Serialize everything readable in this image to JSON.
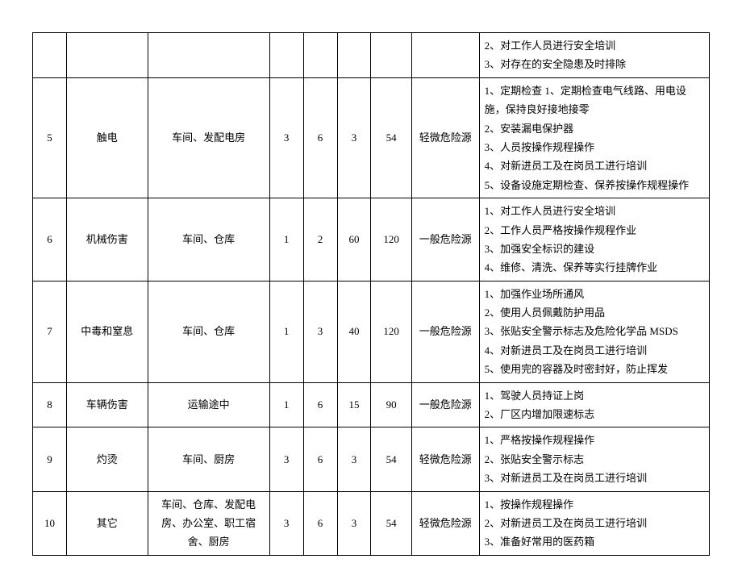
{
  "table": {
    "columns": [
      "idx",
      "name",
      "location",
      "c1",
      "c2",
      "c3",
      "c4",
      "level",
      "measures"
    ],
    "column_widths_pct": [
      5,
      12,
      18,
      5,
      5,
      5,
      6,
      10,
      34
    ],
    "font_family": "SimSun",
    "font_size_pt": 10,
    "border_color": "#000000",
    "background_color": "#ffffff",
    "text_color": "#000000",
    "rows": [
      {
        "idx": "",
        "name": "",
        "location": "",
        "c1": "",
        "c2": "",
        "c3": "",
        "c4": "",
        "level": "",
        "measures": [
          "2、对工作人员进行安全培训",
          "3、对存在的安全隐患及时排除"
        ]
      },
      {
        "idx": "5",
        "name": "触电",
        "location": "车间、发配电房",
        "c1": "3",
        "c2": "6",
        "c3": "3",
        "c4": "54",
        "level": "轻微危险源",
        "measures": [
          "1、定期检查 1、定期检查电气线路、用电设施，保持良好接地接零",
          "2、安装漏电保护器",
          "3、人员按操作规程操作",
          "4、对新进员工及在岗员工进行培训",
          "5、设备设施定期检查、保养按操作规程操作"
        ]
      },
      {
        "idx": "6",
        "name": "机械伤害",
        "location": "车间、仓库",
        "c1": "1",
        "c2": "2",
        "c3": "60",
        "c4": "120",
        "level": "一般危险源",
        "measures": [
          "1、对工作人员进行安全培训",
          "2、工作人员严格按操作规程作业",
          "3、加强安全标识的建设",
          "4、维修、清洗、保养等实行挂牌作业"
        ]
      },
      {
        "idx": "7",
        "name": "中毒和窒息",
        "location": "车间、仓库",
        "c1": "1",
        "c2": "3",
        "c3": "40",
        "c4": "120",
        "level": "一般危险源",
        "measures": [
          "1、加强作业场所通风",
          "2、使用人员佩戴防护用品",
          "3、张贴安全警示标志及危险化学品 MSDS",
          "4、对新进员工及在岗员工进行培训",
          "5、使用完的容器及时密封好，防止挥发"
        ]
      },
      {
        "idx": "8",
        "name": "车辆伤害",
        "location": "运输途中",
        "c1": "1",
        "c2": "6",
        "c3": "15",
        "c4": "90",
        "level": "一般危险源",
        "measures": [
          "1、驾驶人员持证上岗",
          "2、厂区内增加限速标志"
        ]
      },
      {
        "idx": "9",
        "name": "灼烫",
        "location": "车间、厨房",
        "c1": "3",
        "c2": "6",
        "c3": "3",
        "c4": "54",
        "level": "轻微危险源",
        "measures": [
          "1、严格按操作规程操作",
          "2、张贴安全警示标志",
          "3、对新进员工及在岗员工进行培训"
        ]
      },
      {
        "idx": "10",
        "name": "其它",
        "location": "车间、仓库、发配电房、办公室、职工宿舍、厨房",
        "c1": "3",
        "c2": "6",
        "c3": "3",
        "c4": "54",
        "level": "轻微危险源",
        "measures": [
          "1、按操作规程操作",
          "2、对新进员工及在岗员工进行培训",
          "3、准备好常用的医药箱"
        ]
      }
    ]
  }
}
